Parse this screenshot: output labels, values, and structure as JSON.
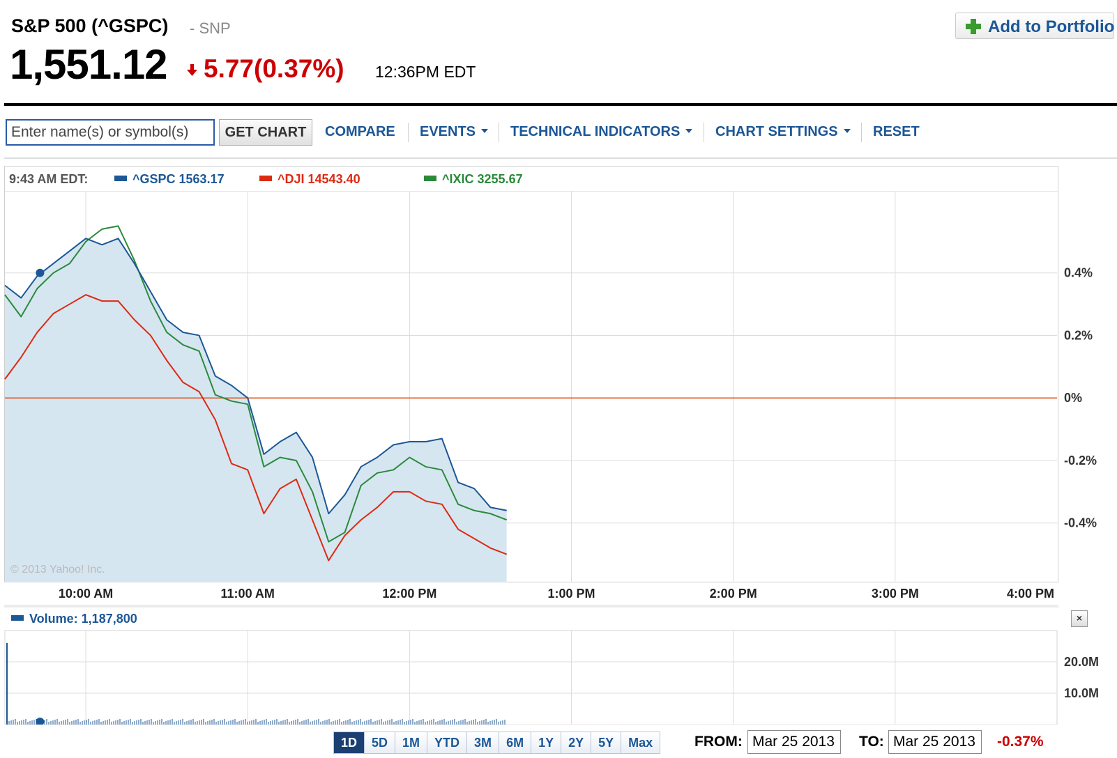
{
  "quote": {
    "name": "S&P 500 (^GSPC)",
    "exchange": "- SNP",
    "price": "1,551.12",
    "change": "5.77(0.37%)",
    "time": "12:36PM EDT",
    "add_portfolio": "Add to Portfolio"
  },
  "toolbar": {
    "search_placeholder": "Enter name(s) or symbol(s)",
    "get_chart": "GET CHART",
    "compare": "COMPARE",
    "events": "EVENTS",
    "technical": "TECHNICAL INDICATORS",
    "settings": "CHART SETTINGS",
    "reset": "RESET"
  },
  "legend": {
    "time": "9:43 AM EDT:",
    "gspc": "^GSPC 1563.17",
    "dji": "^DJI 14543.40",
    "ixic": "^IXIC 3255.67"
  },
  "watermark": "© 2013 Yahoo! Inc.",
  "volume": {
    "label": "Volume: 1,187,800",
    "close": "×",
    "y_ticks": [
      "20.0M",
      "10.0M"
    ]
  },
  "ranges": [
    "1D",
    "5D",
    "1M",
    "YTD",
    "3M",
    "6M",
    "1Y",
    "2Y",
    "5Y",
    "Max"
  ],
  "active_range": "1D",
  "date_range": {
    "from_label": "FROM:",
    "from": "Mar 25 2013",
    "to_label": "TO:",
    "to": "Mar 25 2013",
    "period_change": "-0.37%"
  },
  "colors": {
    "gspc": "#1c5796",
    "dji": "#dd2a12",
    "ixic": "#2a8a3a",
    "down": "#cc0000",
    "fill": "#d6e6f1",
    "zero_line": "#e0501a"
  },
  "chart_data": {
    "type": "line",
    "x_tick_labels": [
      "10:00 AM",
      "11:00 AM",
      "12:00 PM",
      "1:00 PM",
      "2:00 PM",
      "3:00 PM",
      "4:00 PM"
    ],
    "y_tick_labels": [
      "0.4%",
      "0.2%",
      "0%",
      "-0.2%",
      "-0.4%"
    ],
    "y_ticks": [
      0.4,
      0.2,
      0,
      -0.2,
      -0.4
    ],
    "xlim": [
      9.5,
      16
    ],
    "ylim": [
      -0.59,
      0.66
    ],
    "grid": true,
    "fill_series": "^GSPC",
    "marker": {
      "series": "^GSPC",
      "x": 9.717,
      "y": 0.4
    },
    "series": [
      {
        "name": "^GSPC",
        "x": [
          9.5,
          9.6,
          9.7,
          9.8,
          9.9,
          10.0,
          10.1,
          10.2,
          10.3,
          10.4,
          10.5,
          10.6,
          10.7,
          10.8,
          10.9,
          11.0,
          11.1,
          11.2,
          11.3,
          11.4,
          11.5,
          11.6,
          11.7,
          11.8,
          11.9,
          12.0,
          12.1,
          12.2,
          12.3,
          12.4,
          12.5,
          12.6
        ],
        "y": [
          0.36,
          0.32,
          0.39,
          0.43,
          0.47,
          0.51,
          0.49,
          0.51,
          0.43,
          0.34,
          0.25,
          0.21,
          0.2,
          0.07,
          0.04,
          0,
          -0.18,
          -0.14,
          -0.11,
          -0.19,
          -0.37,
          -0.31,
          -0.22,
          -0.19,
          -0.15,
          -0.14,
          -0.14,
          -0.13,
          -0.27,
          -0.29,
          -0.35,
          -0.36
        ]
      },
      {
        "name": "^DJI",
        "x": [
          9.5,
          9.6,
          9.7,
          9.8,
          9.9,
          10.0,
          10.1,
          10.2,
          10.3,
          10.4,
          10.5,
          10.6,
          10.7,
          10.8,
          10.9,
          11.0,
          11.1,
          11.2,
          11.3,
          11.4,
          11.5,
          11.6,
          11.7,
          11.8,
          11.9,
          12.0,
          12.1,
          12.2,
          12.3,
          12.4,
          12.5,
          12.6
        ],
        "y": [
          0.06,
          0.13,
          0.21,
          0.27,
          0.3,
          0.33,
          0.31,
          0.31,
          0.25,
          0.2,
          0.12,
          0.05,
          0.02,
          -0.07,
          -0.21,
          -0.23,
          -0.37,
          -0.29,
          -0.26,
          -0.39,
          -0.52,
          -0.44,
          -0.39,
          -0.35,
          -0.3,
          -0.3,
          -0.33,
          -0.34,
          -0.42,
          -0.45,
          -0.48,
          -0.5
        ]
      },
      {
        "name": "^IXIC",
        "x": [
          9.5,
          9.6,
          9.7,
          9.8,
          9.9,
          10.0,
          10.1,
          10.2,
          10.3,
          10.4,
          10.5,
          10.6,
          10.7,
          10.8,
          10.9,
          11.0,
          11.1,
          11.2,
          11.3,
          11.4,
          11.5,
          11.6,
          11.7,
          11.8,
          11.9,
          12.0,
          12.1,
          12.2,
          12.3,
          12.4,
          12.5,
          12.6
        ],
        "y": [
          0.33,
          0.26,
          0.35,
          0.4,
          0.43,
          0.5,
          0.54,
          0.55,
          0.44,
          0.31,
          0.21,
          0.17,
          0.15,
          0.01,
          -0.01,
          -0.02,
          -0.22,
          -0.19,
          -0.2,
          -0.3,
          -0.46,
          -0.43,
          -0.28,
          -0.24,
          -0.23,
          -0.19,
          -0.22,
          -0.23,
          -0.34,
          -0.36,
          -0.37,
          -0.39
        ]
      }
    ],
    "volume_ylim": [
      0,
      30000000
    ],
    "volume_first_bar": 26000000
  }
}
